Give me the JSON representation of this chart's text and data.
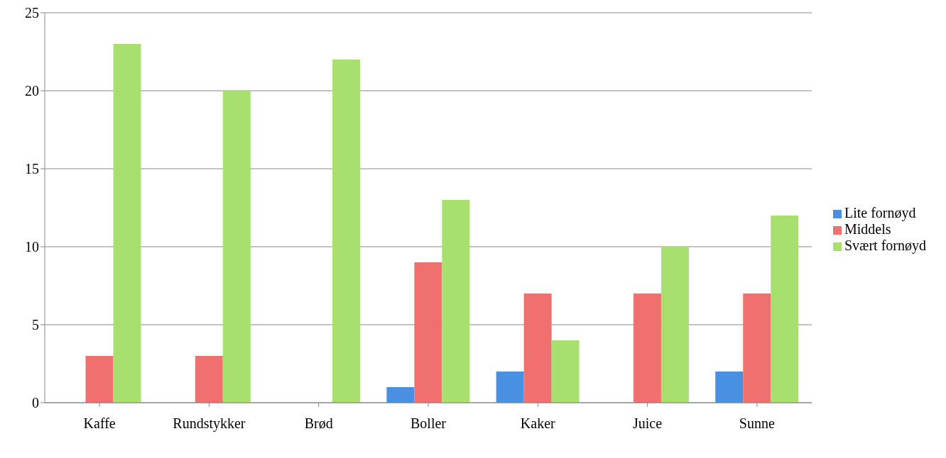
{
  "chart_data": {
    "type": "bar",
    "categories": [
      "Kaffe",
      "Rundstykker",
      "Brød",
      "Boller",
      "Kaker",
      "Juice",
      "Sunne"
    ],
    "series": [
      {
        "name": "Lite fornøyd",
        "color": "#4a90e2",
        "values": [
          0,
          0,
          0,
          1,
          2,
          0,
          2
        ]
      },
      {
        "name": "Middels",
        "color": "#f07070",
        "values": [
          3,
          3,
          0,
          9,
          7,
          7,
          7
        ]
      },
      {
        "name": "Svært fornøyd",
        "color": "#a8e070",
        "values": [
          23,
          20,
          22,
          13,
          4,
          10,
          12
        ]
      }
    ],
    "ylim": [
      0,
      25
    ],
    "yticks": [
      0,
      5,
      10,
      15,
      20,
      25
    ],
    "grid": "y",
    "legend": "right"
  }
}
